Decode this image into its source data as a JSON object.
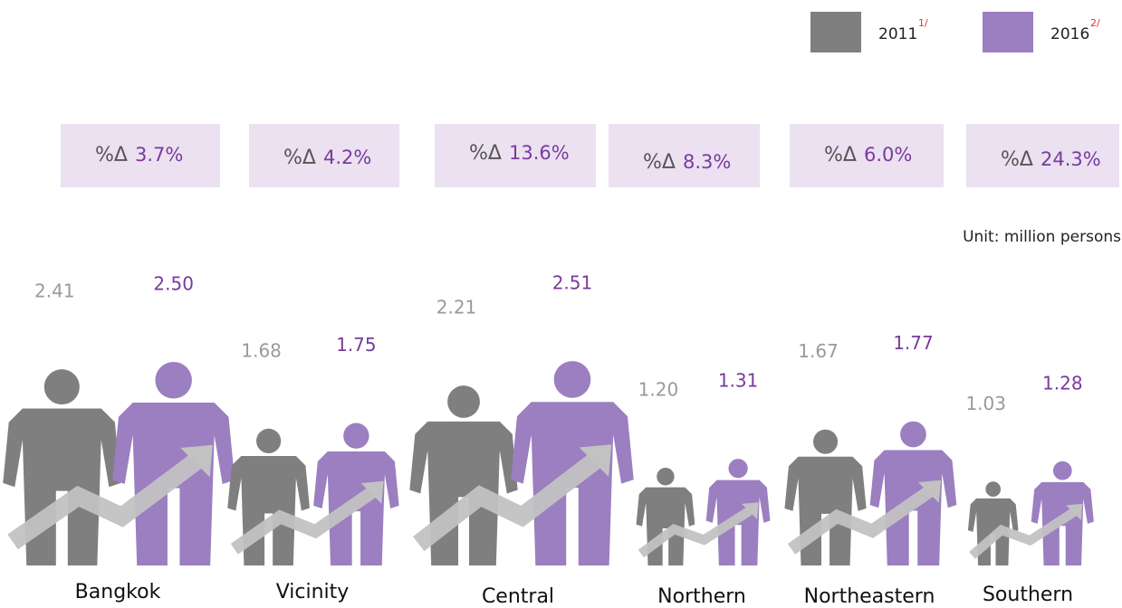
{
  "chart_data": {
    "type": "pictogram",
    "categories": [
      "Bangkok",
      "Vicinity",
      "Central",
      "Northern",
      "Northeastern",
      "Southern"
    ],
    "series": [
      {
        "name": "2011",
        "note": "1/",
        "color": "#7f7f7f",
        "label_color": "#9a9a9a",
        "values": [
          2.41,
          1.68,
          2.21,
          1.2,
          1.67,
          1.03
        ],
        "value_labels": [
          "2.41",
          "1.68",
          "2.21",
          "1.20",
          "1.67",
          "1.03"
        ]
      },
      {
        "name": "2016",
        "note": "2/",
        "color": "#9b7fc0",
        "label_color": "#7a3a9e",
        "values": [
          2.5,
          1.75,
          2.51,
          1.31,
          1.77,
          1.28
        ],
        "value_labels": [
          "2.50",
          "1.75",
          "2.51",
          "1.31",
          "1.77",
          "1.28"
        ]
      }
    ],
    "change_symbol": "%Δ",
    "changes": [
      3.7,
      4.2,
      13.6,
      8.3,
      6.0,
      24.3
    ],
    "change_labels": [
      "3.7%",
      "4.2%",
      "13.6%",
      "8.3%",
      "6.0%",
      "24.3%"
    ],
    "unit": "Unit: million persons"
  }
}
